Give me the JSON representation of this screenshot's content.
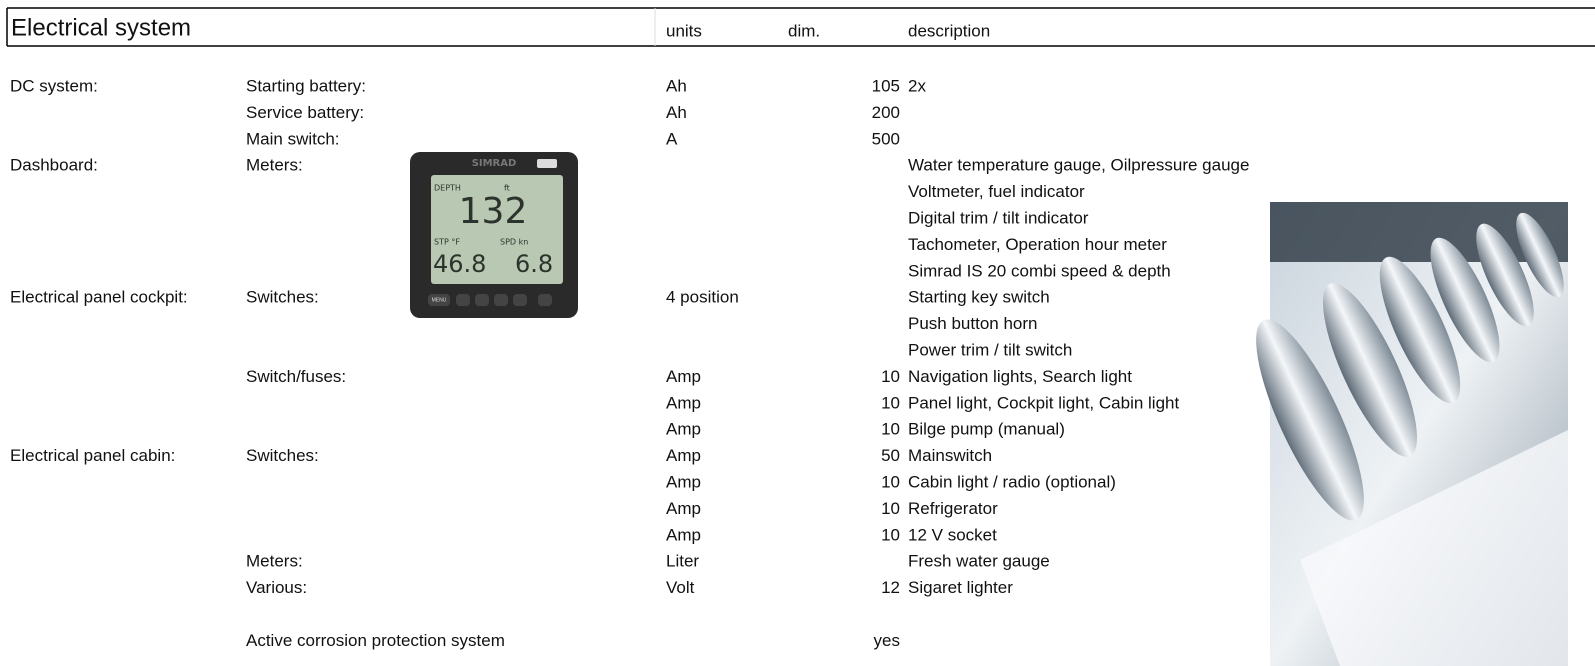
{
  "header": {
    "title": "Electrical system",
    "units": "units",
    "dim": "dim.",
    "description": "description"
  },
  "rows": [
    {
      "section": "DC system:",
      "item": "Starting battery:",
      "units": "Ah",
      "dim": 105,
      "description": "2x"
    },
    {
      "item": "Service battery:",
      "units": "Ah",
      "dim": 200
    },
    {
      "item": "Main switch:",
      "units": "A",
      "dim": 500
    },
    {
      "section": "Dashboard:",
      "item": "Meters:",
      "description": "Water temperature gauge, Oilpressure gauge"
    },
    {
      "description": "Voltmeter, fuel indicator"
    },
    {
      "description": "Digital trim / tilt indicator"
    },
    {
      "description": "Tachometer, Operation hour meter"
    },
    {
      "description": "Simrad IS 20 combi speed & depth"
    },
    {
      "section": "Electrical panel cockpit:",
      "item": "Switches:",
      "units": "4 position",
      "description": "Starting key switch"
    },
    {
      "description": "Push button horn"
    },
    {
      "description": "Power trim / tilt switch"
    },
    {
      "item": "Switch/fuses:",
      "units": "Amp",
      "dim": 10,
      "description": "Navigation lights, Search light"
    },
    {
      "units": "Amp",
      "dim": 10,
      "description": "Panel light, Cockpit light, Cabin light"
    },
    {
      "units": "Amp",
      "dim": 10,
      "description": "Bilge pump (manual)"
    },
    {
      "section": "Electrical panel cabin:",
      "item": "Switches:",
      "units": "Amp",
      "dim": 50,
      "description": "Mainswitch"
    },
    {
      "units": "Amp",
      "dim": 10,
      "description": "Cabin light / radio (optional)"
    },
    {
      "units": "Amp",
      "dim": 10,
      "description": "Refrigerator"
    },
    {
      "units": "Amp",
      "dim": 10,
      "description": "12 V socket"
    },
    {
      "item": "Meters:",
      "units": "Liter",
      "description": "Fresh water gauge"
    },
    {
      "item": "Various:",
      "units": "Volt",
      "dim": 12,
      "description": "Sigaret lighter"
    }
  ],
  "footer": {
    "item": "Active corrosion protection system",
    "dim": "yes"
  },
  "gauge": {
    "brand": "SIMRAD",
    "depth_label": "DEPTH",
    "depth_unit": "ft",
    "depth": "132",
    "temp_label": "STP °F",
    "speed_label": "SPD kn",
    "temp": "46.8",
    "speed": "6.8",
    "menu": "MENU"
  }
}
